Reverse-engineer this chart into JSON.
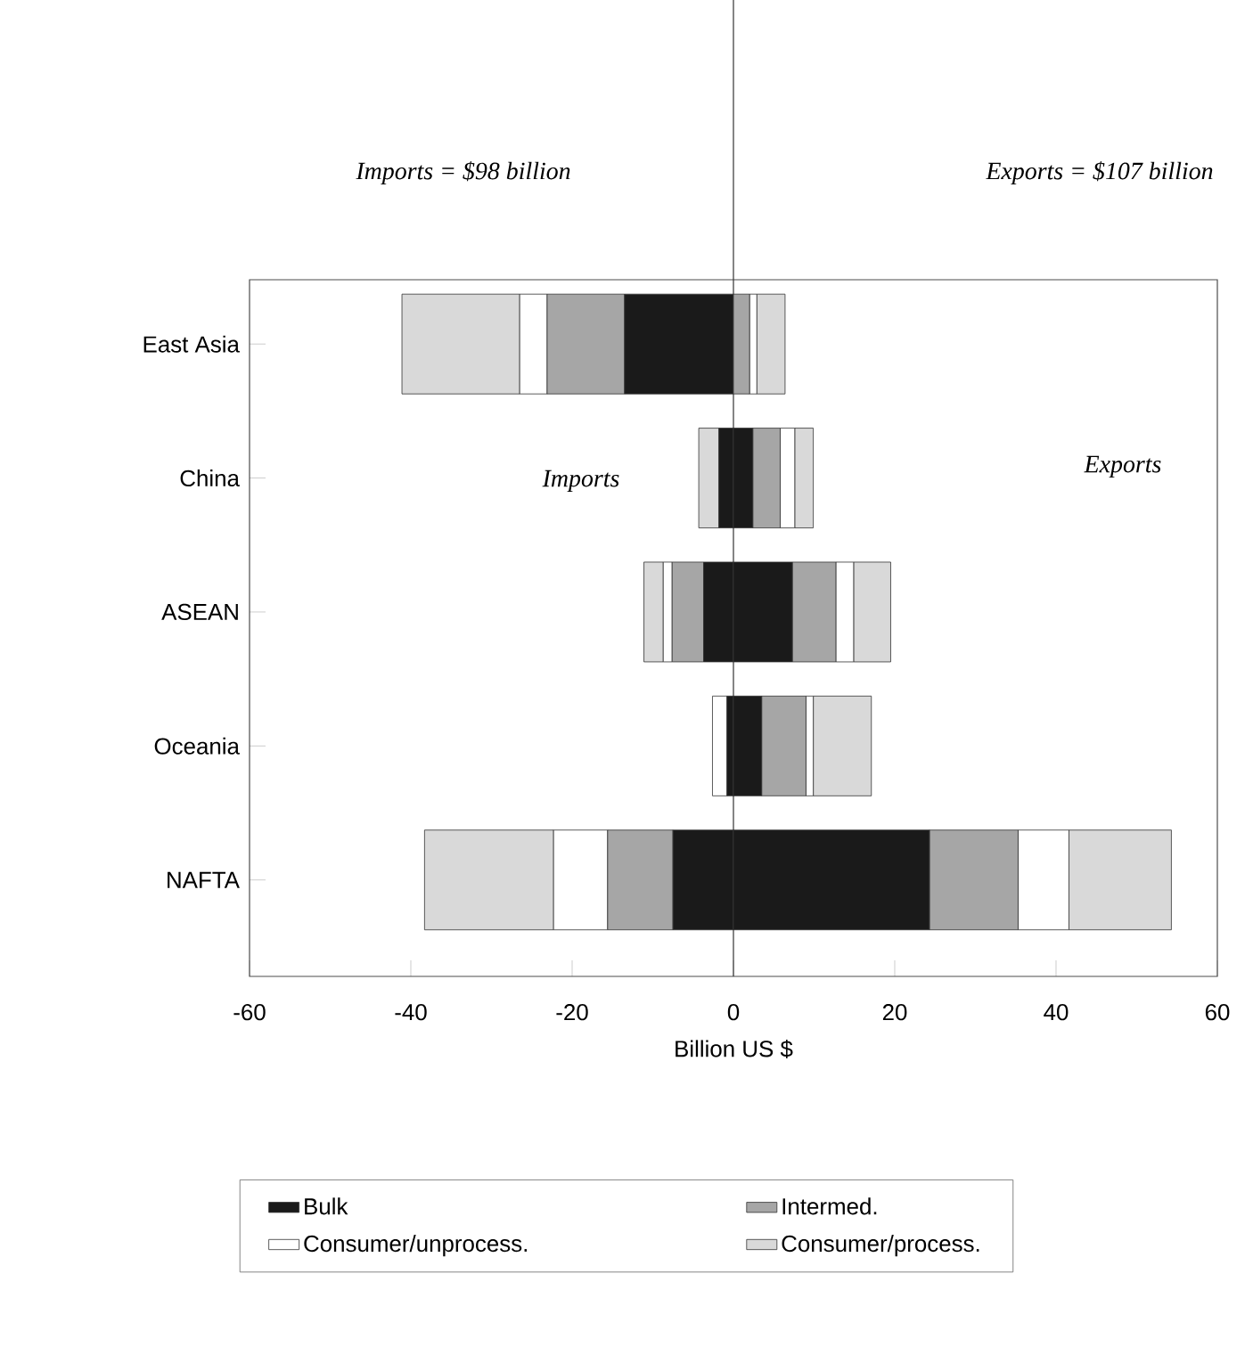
{
  "chart_data": {
    "type": "bar",
    "orientation": "horizontal",
    "stacked": true,
    "xlabel": "Billion US $",
    "categories": [
      "East Asia",
      "China",
      "ASEAN",
      "Oceania",
      "NAFTA"
    ],
    "series": [
      {
        "color": "#1a1a1a",
        "values": [
          -13.5,
          -1.8,
          -3.7,
          -0.8,
          -7.5
        ]
      },
      {
        "color": "#a6a6a6",
        "values": [
          -9.6,
          0,
          -3.9,
          0,
          -8.1
        ]
      },
      {
        "color": "#ffffff",
        "values": [
          -3.4,
          0,
          -1.1,
          -1.8,
          -6.7
        ]
      },
      {
        "color": "#d9d9d9",
        "values": [
          -14.6,
          -2.5,
          -2.4,
          0,
          -16.0
        ]
      },
      {
        "name": "Bulk",
        "color": "#1a1a1a",
        "values": [
          0,
          2.4,
          7.3,
          3.5,
          24.3
        ]
      },
      {
        "name": "Intermed.",
        "color": "#a6a6a6",
        "values": [
          2.0,
          3.4,
          5.4,
          5.5,
          11.0
        ]
      },
      {
        "name": "Consumer/unprocess.",
        "color": "#ffffff",
        "values": [
          0.9,
          1.8,
          2.2,
          0.9,
          6.3
        ]
      },
      {
        "name": "Consumer/process.",
        "color": "#d9d9d9",
        "values": [
          3.5,
          2.3,
          4.6,
          7.2,
          12.7
        ]
      }
    ],
    "xlim": [
      -60,
      60
    ],
    "xticks": [
      -60,
      -40,
      -20,
      0,
      20,
      40,
      60
    ],
    "ref_lines": [
      {
        "axis": "x",
        "value": 0
      }
    ],
    "annotations": [
      "Imports = $98 billion",
      "Exports = $107 billion",
      "Imports",
      "Exports"
    ],
    "legend": "bottom",
    "grid": false
  }
}
